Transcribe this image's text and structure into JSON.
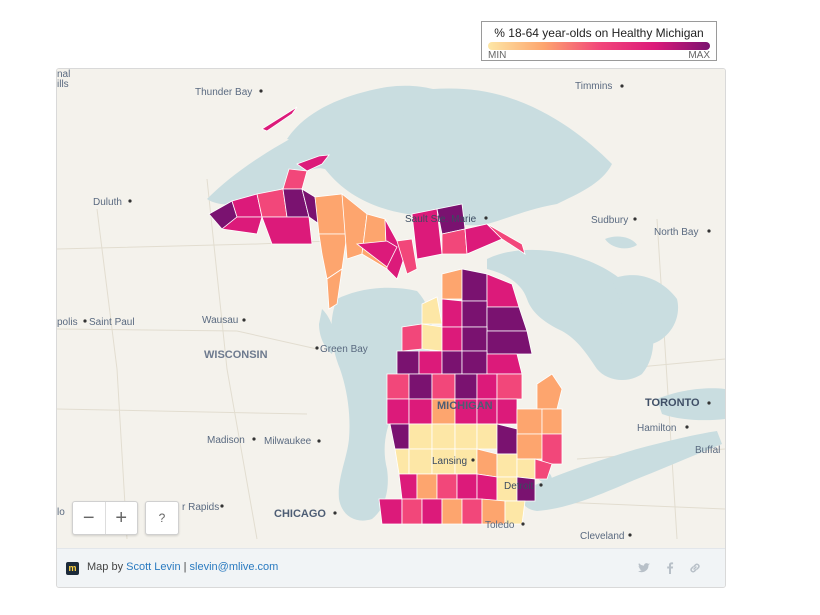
{
  "legend": {
    "title": "% 18-64 year-olds on Healthy Michigan",
    "min_label": "MIN",
    "max_label": "MAX",
    "scale_colors": [
      "#fde7a6",
      "#fda56e",
      "#f2477a",
      "#dc1a7a",
      "#7a1270"
    ]
  },
  "map": {
    "water_color": "#c9dde0",
    "land_color": "#f4f2ec",
    "labels": {
      "thunder_bay": "Thunder Bay",
      "timmins": "Timmins",
      "duluth": "Duluth",
      "sault_ste_marie": "Sault Ste. Marie",
      "sudbury": "Sudbury",
      "north_bay": "North Bay",
      "saint_paul": "Saint Paul",
      "wausau": "Wausau",
      "wisconsin": "WISCONSIN",
      "green_bay": "Green Bay",
      "michigan": "MICHIGAN",
      "toronto": "TORONTO",
      "hamilton": "Hamilton",
      "buffalo": "Buffal",
      "madison": "Madison",
      "milwaukee": "Milwaukee",
      "lansing": "Lansing",
      "detroit": "Detroit",
      "chicago": "CHICAGO",
      "toledo": "Toledo",
      "cleveland": "Cleveland",
      "cedar_rapids": "r Rapids",
      "edge_top_left": "nal\nills",
      "edge_polis": "polis",
      "edge_io": "lo"
    }
  },
  "controls": {
    "zoom_out": "−",
    "zoom_in": "+",
    "help": "?"
  },
  "footer": {
    "prefix": "Map by ",
    "author": "Scott Levin",
    "separator": " | ",
    "email": "slevin@mlive.com",
    "logo_letter": "m"
  },
  "share_icons": [
    "twitter-icon",
    "facebook-icon",
    "link-icon"
  ]
}
